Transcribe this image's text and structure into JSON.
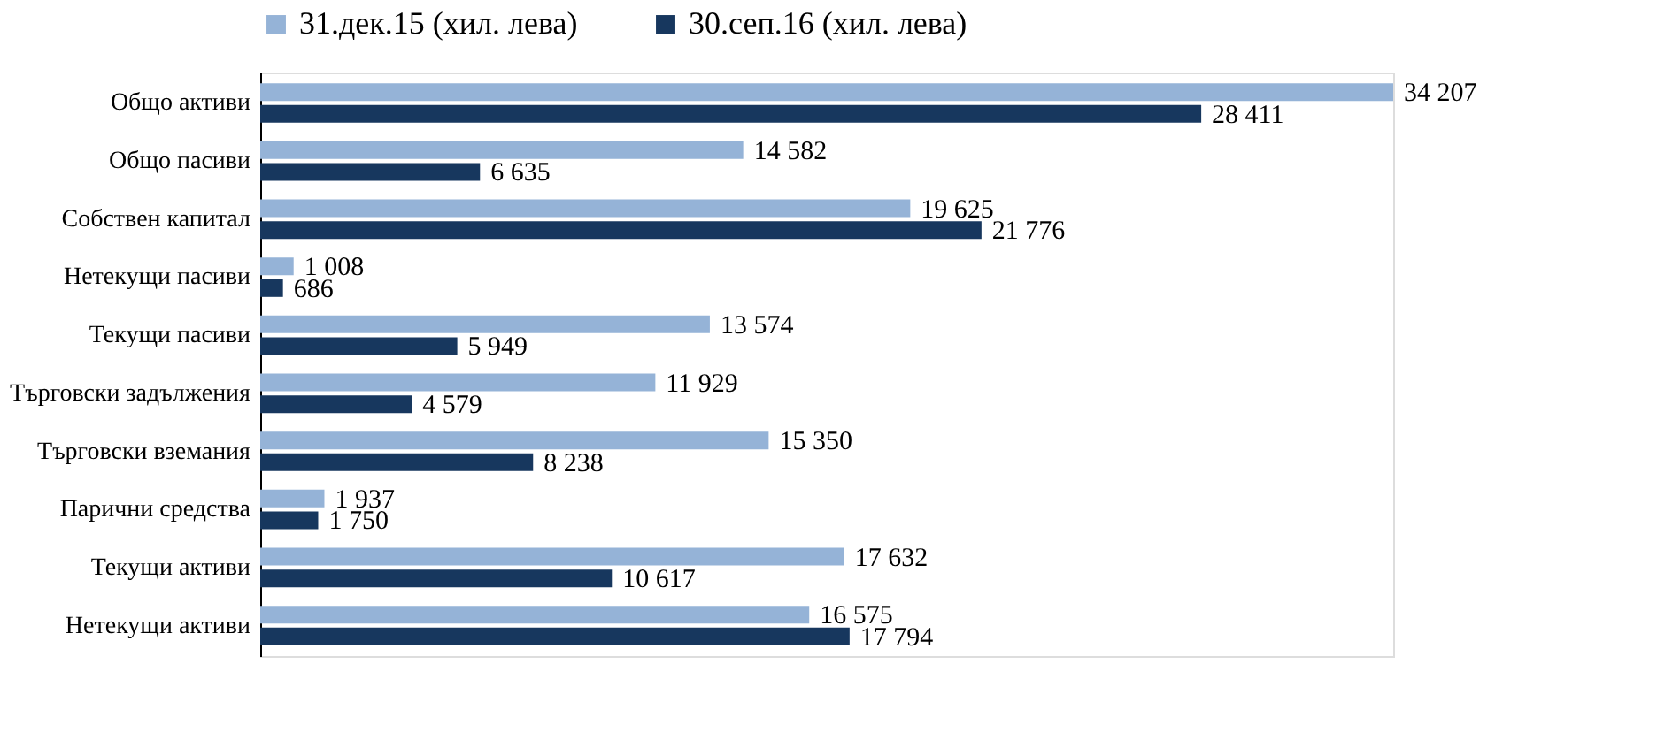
{
  "chart_data": {
    "type": "bar",
    "orientation": "horizontal",
    "legend": "top",
    "categories": [
      "Общо активи",
      "Общо пасиви",
      "Собствен капитал",
      "Нетекущи пасиви",
      "Текущи пасиви",
      "Търговски задължения",
      "Търговски вземания",
      "Парични  средства",
      "Текущи активи",
      "Нетекущи активи"
    ],
    "series": [
      {
        "name": "31.дек.15 (хил. лева)",
        "color": "#95b3d7",
        "values": [
          34207,
          14582,
          19625,
          1008,
          13574,
          11929,
          15350,
          1937,
          17632,
          16575
        ],
        "value_labels": [
          "34 207",
          "14 582",
          "19 625",
          "1 008",
          "13 574",
          "11 929",
          "15 350",
          "1 937",
          "17 632",
          "16 575"
        ]
      },
      {
        "name": "30.сеп.16 (хил. лева)",
        "color": "#17375e",
        "values": [
          28411,
          6635,
          21776,
          686,
          5949,
          4579,
          8238,
          1750,
          10617,
          17794
        ],
        "value_labels": [
          "28 411",
          "6 635",
          "21 776",
          "686",
          "5 949",
          "4 579",
          "8 238",
          "1 750",
          "10 617",
          "17 794"
        ]
      }
    ]
  }
}
